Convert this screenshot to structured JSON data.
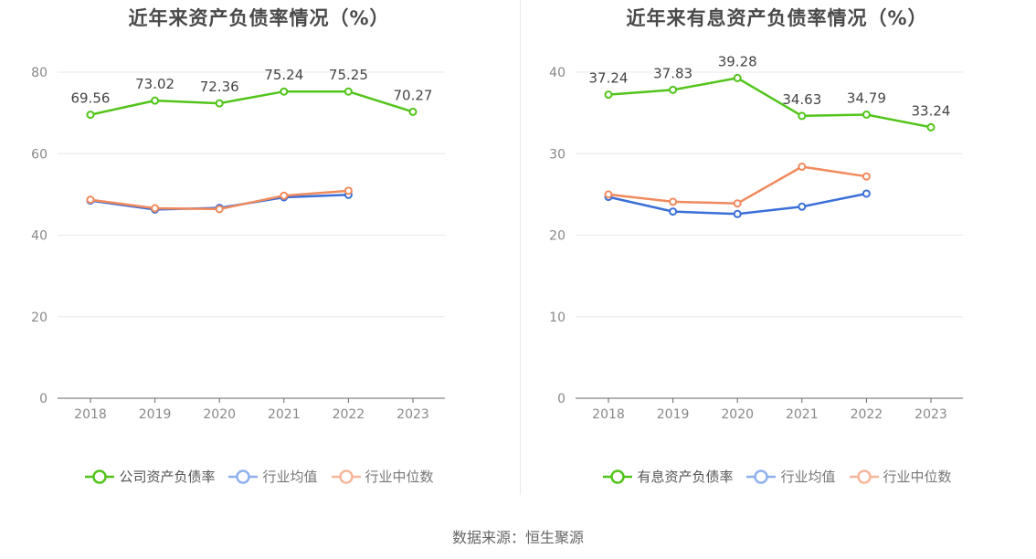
{
  "source": "数据来源：恒生聚源",
  "chart_data": [
    {
      "type": "line",
      "title": "近年来资产负债率情况（%）",
      "categories": [
        "2018",
        "2019",
        "2020",
        "2021",
        "2022",
        "2023"
      ],
      "ylim": [
        0,
        80
      ],
      "yticks": [
        0,
        20,
        40,
        60,
        80
      ],
      "grid": true,
      "legend_position": "bottom",
      "series": [
        {
          "name": "公司资产负债率",
          "color": "#52c41a",
          "values": [
            69.56,
            73.02,
            72.36,
            75.24,
            75.25,
            70.27
          ],
          "labels": [
            "69.56",
            "73.02",
            "72.36",
            "75.24",
            "75.25",
            "70.27"
          ],
          "show_labels": true
        },
        {
          "name": "行业均值",
          "color": "#3a6fd8",
          "values": [
            48.5,
            46.3,
            46.7,
            49.3,
            49.9,
            null
          ],
          "show_labels": false
        },
        {
          "name": "行业中位数",
          "color": "#f08a5d",
          "values": [
            48.7,
            46.6,
            46.4,
            49.7,
            50.9,
            null
          ],
          "show_labels": false
        }
      ]
    },
    {
      "type": "line",
      "title": "近年来有息资产负债率情况（%）",
      "categories": [
        "2018",
        "2019",
        "2020",
        "2021",
        "2022",
        "2023"
      ],
      "ylim": [
        0,
        40
      ],
      "yticks": [
        0,
        10,
        20,
        30,
        40
      ],
      "grid": true,
      "legend_position": "bottom",
      "series": [
        {
          "name": "有息资产负债率",
          "color": "#52c41a",
          "values": [
            37.24,
            37.83,
            39.28,
            34.63,
            34.79,
            33.24
          ],
          "labels": [
            "37.24",
            "37.83",
            "39.28",
            "34.63",
            "34.79",
            "33.24"
          ],
          "show_labels": true
        },
        {
          "name": "行业均值",
          "color": "#3a6fd8",
          "values": [
            24.7,
            22.9,
            22.6,
            23.5,
            25.1,
            null
          ],
          "show_labels": false
        },
        {
          "name": "行业中位数",
          "color": "#f08a5d",
          "values": [
            25.0,
            24.1,
            23.9,
            28.4,
            27.2,
            null
          ],
          "show_labels": false
        }
      ]
    }
  ],
  "legend_colors": {
    "active_primary": "#52c41a",
    "inactive_blue": "#8fb0ee",
    "inactive_orange": "#f7b69a"
  }
}
